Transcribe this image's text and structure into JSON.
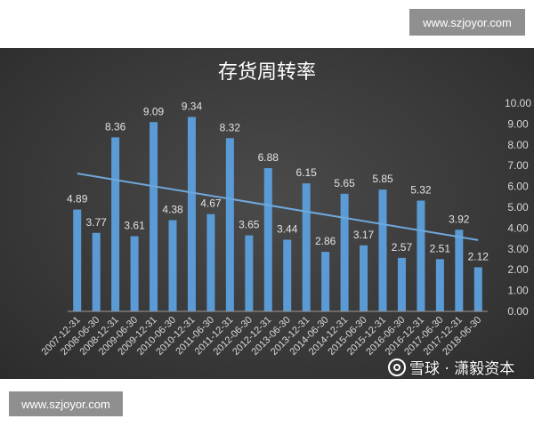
{
  "site": {
    "top_badge": "www.szjoyor.com",
    "bottom_badge": "www.szjoyor.com"
  },
  "watermark": {
    "text": "雪球 · 潇毅资本",
    "logo_icon": "snowball-logo-icon"
  },
  "colors": {
    "bar": "#5b9bd5",
    "trendline": "#6fa8dc",
    "background": "#3a3a3a"
  },
  "chart_data": {
    "type": "bar",
    "title": "存货周转率",
    "xlabel": "",
    "ylabel": "",
    "ylim": [
      0,
      10
    ],
    "yticks": [
      "0.00",
      "1.00",
      "2.00",
      "3.00",
      "4.00",
      "5.00",
      "6.00",
      "7.00",
      "8.00",
      "9.00",
      "10.00"
    ],
    "y_axis_position": "right",
    "grid": false,
    "legend": "none",
    "trendline": "linear",
    "categories": [
      "2007-12-31",
      "2008-06-30",
      "2008-12-31",
      "2009-06-30",
      "2009-12-31",
      "2010-06-30",
      "2010-12-31",
      "2011-06-30",
      "2011-12-31",
      "2012-06-30",
      "2012-12-31",
      "2013-06-30",
      "2013-12-31",
      "2014-06-30",
      "2014-12-31",
      "2015-06-30",
      "2015-12-31",
      "2016-06-30",
      "2016-12-31",
      "2017-06-30",
      "2017-12-31",
      "2018-06-30"
    ],
    "values": [
      4.89,
      3.77,
      8.36,
      3.61,
      9.09,
      4.38,
      9.34,
      4.67,
      8.32,
      3.65,
      6.88,
      3.44,
      6.15,
      2.86,
      5.65,
      3.17,
      5.85,
      2.57,
      5.32,
      2.51,
      3.92,
      2.12
    ],
    "value_labels": [
      "4.89",
      "3.77",
      "8.36",
      "3.61",
      "9.09",
      "4.38",
      "9.34",
      "4.67",
      "8.32",
      "3.65",
      "6.88",
      "3.44",
      "6.15",
      "2.86",
      "5.65",
      "3.17",
      "5.85",
      "2.57",
      "5.32",
      "2.51",
      "3.92",
      "2.12"
    ]
  }
}
